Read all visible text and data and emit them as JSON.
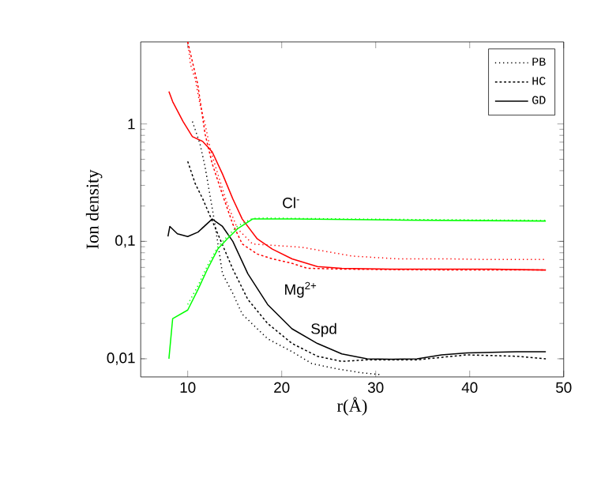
{
  "chart_data": {
    "type": "line",
    "xlabel": "r(Å)",
    "ylabel": "Ion density",
    "log": "y",
    "legend": "top right",
    "xlim": [
      5,
      50
    ],
    "ylim": [
      0.007,
      5
    ],
    "xticks": [
      10,
      20,
      30,
      40,
      50
    ],
    "yticks": [
      {
        "value": 0.01,
        "label": "0,01"
      },
      {
        "value": 0.1,
        "label": "0,1"
      },
      {
        "value": 1,
        "label": "1"
      }
    ],
    "series": [
      {
        "name": "PB",
        "color": "#000000",
        "line_style": "dotted",
        "x": [
          10.5,
          11.3,
          11.85,
          12.9,
          13.7,
          14.8,
          15.8,
          18.5,
          21.1,
          23.2,
          25.9,
          28.5,
          30.7
        ],
        "values": [
          1.05,
          0.68,
          0.43,
          0.14,
          0.053,
          0.036,
          0.024,
          0.0148,
          0.0115,
          0.0091,
          0.0082,
          0.0076,
          0.0073
        ]
      },
      {
        "name": "HC",
        "color": "#000000",
        "line_style": "dashed",
        "x": [
          10,
          10.8,
          11.6,
          13.2,
          14.8,
          16.4,
          18.5,
          21.1,
          23.8,
          26.4,
          29.1,
          34.4,
          39.7,
          45,
          48.1
        ],
        "values": [
          0.48,
          0.31,
          0.23,
          0.116,
          0.058,
          0.032,
          0.02,
          0.0135,
          0.0105,
          0.0095,
          0.0098,
          0.0098,
          0.0108,
          0.0105,
          0.01
        ]
      },
      {
        "name": "GD",
        "color": "#000000",
        "line_style": "solid",
        "x": [
          7.9,
          8.1,
          8.9,
          10,
          11.1,
          12.6,
          13.7,
          14.8,
          16.4,
          18.5,
          21.1,
          23.8,
          26.4,
          29.1,
          31.7,
          34.4,
          37,
          39.7,
          45,
          48.1
        ],
        "values": [
          0.11,
          0.134,
          0.116,
          0.11,
          0.12,
          0.155,
          0.134,
          0.1,
          0.053,
          0.029,
          0.018,
          0.0135,
          0.011,
          0.01,
          0.0099,
          0.01,
          0.0108,
          0.0112,
          0.0115,
          0.0115
        ]
      },
      {
        "color": "#ff0000",
        "line_style": "solid",
        "x": [
          8,
          8.4,
          9.5,
          10.5,
          11.6,
          12.6,
          13.7,
          14.8,
          15.8,
          17.4,
          19,
          21.1,
          23.8,
          26.4,
          31.7,
          37,
          42.3,
          48.1
        ],
        "values": [
          1.89,
          1.55,
          1.05,
          0.78,
          0.71,
          0.58,
          0.375,
          0.23,
          0.155,
          0.105,
          0.086,
          0.071,
          0.061,
          0.059,
          0.058,
          0.058,
          0.058,
          0.057
        ]
      },
      {
        "color": "#ff0000",
        "line_style": "dashed",
        "x": [
          10,
          11.06,
          11.85,
          12.6,
          13.7,
          14.8,
          15.8,
          17.4,
          19,
          21.1,
          22.7,
          26.4,
          37,
          48.1
        ],
        "values": [
          5,
          2.19,
          0.82,
          0.46,
          0.25,
          0.14,
          0.095,
          0.078,
          0.071,
          0.065,
          0.059,
          0.058,
          0.057,
          0.057
        ]
      },
      {
        "color": "#ff0000",
        "line_style": "dotted",
        "x": [
          10,
          10.3,
          10.8,
          11.3,
          11.85,
          12.4,
          13.2,
          14.2,
          15.3,
          16.9,
          22.2,
          27.5,
          32.3,
          37.5,
          42.3,
          48.1
        ],
        "values": [
          5,
          3.2,
          2.4,
          1.48,
          1,
          0.61,
          0.375,
          0.21,
          0.128,
          0.095,
          0.089,
          0.075,
          0.071,
          0.071,
          0.07,
          0.07
        ]
      },
      {
        "color": "#00ff00",
        "line_style": "solid",
        "x": [
          8,
          8.4,
          10,
          11.1,
          12.1,
          13.2,
          14.2,
          15.3,
          16.9,
          18.5,
          21.1,
          31.7,
          48.1
        ],
        "values": [
          0.01,
          0.022,
          0.026,
          0.039,
          0.058,
          0.086,
          0.105,
          0.128,
          0.155,
          0.155,
          0.155,
          0.152,
          0.149
        ]
      },
      {
        "color": "#00ff00",
        "line_style": "dotted",
        "x": [
          10,
          11.1,
          12.1,
          13.2,
          14.2,
          15.3,
          16.9,
          18.5,
          21.1,
          31.7,
          48.1
        ],
        "values": [
          0.029,
          0.042,
          0.062,
          0.09,
          0.11,
          0.135,
          0.157,
          0.158,
          0.157,
          0.154,
          0.151
        ]
      }
    ],
    "annotations": [
      "Cl$^{-}$",
      "Mg$^{2+}$",
      "Spd"
    ]
  }
}
